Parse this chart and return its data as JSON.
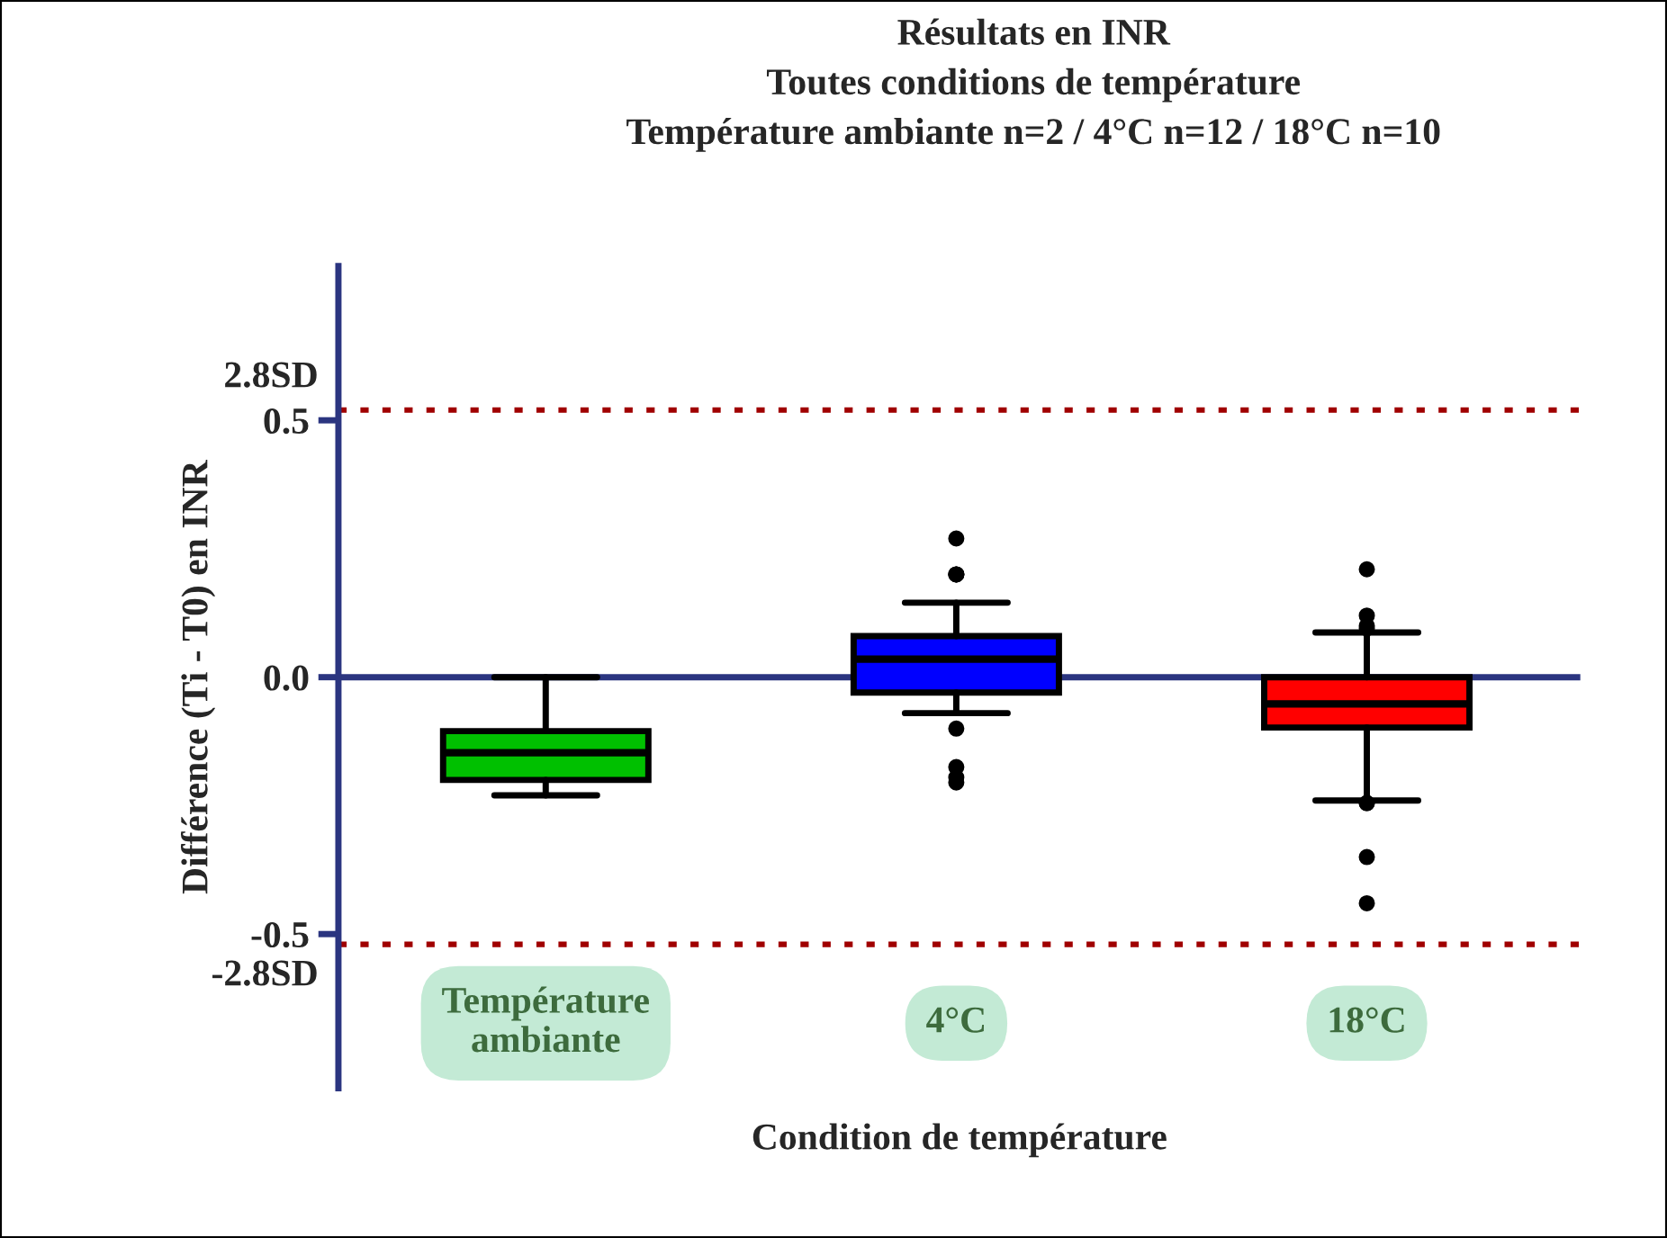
{
  "chart_data": {
    "type": "box",
    "title": "Résultats en INR\nToutes conditions de température\nTempérature ambiante n=2 / 4°C n=12 / 18°C n=10",
    "xlabel": "Condition de température",
    "ylabel": "Différence (Ti - T0) en INR",
    "categories": [
      "Température\nambiante",
      "4°C",
      "18°C"
    ],
    "colors": [
      "#00c000",
      "#0000ff",
      "#ff0000"
    ],
    "boxes": [
      {
        "low": -0.23,
        "q1": -0.2,
        "median": -0.147,
        "q3": -0.105,
        "high": 0.0
      },
      {
        "low": -0.07,
        "q1": -0.03,
        "median": 0.035,
        "q3": 0.08,
        "high": 0.145,
        "outliers": [
          0.27,
          0.2,
          0.2,
          0.2,
          -0.1,
          -0.175,
          -0.205,
          -0.195
        ]
      },
      {
        "low": -0.24,
        "q1": -0.098,
        "median": -0.052,
        "q3": 0.0,
        "high": 0.087,
        "outliers": [
          0.21,
          0.12,
          0.1,
          0.095,
          -0.245,
          -0.245,
          -0.35,
          -0.44
        ]
      }
    ],
    "ylim": [
      -0.8,
      0.8
    ],
    "yticks": [
      {
        "value": -0.5,
        "label": "-0.5"
      },
      {
        "value": 0,
        "label": "0.0"
      },
      {
        "value": 0.5,
        "label": "0.5"
      }
    ],
    "ref_lines": [
      {
        "axis": "y",
        "value": 0,
        "color": "#2b3580",
        "line_style": "solid"
      },
      {
        "axis": "y",
        "value": 0.52,
        "label": "2.8SD",
        "color": "#a00000",
        "line_style": "dotted"
      },
      {
        "axis": "y",
        "value": -0.52,
        "label": "-2.8SD",
        "color": "#a00000",
        "line_style": "dotted"
      }
    ],
    "grid": false,
    "legend": false
  }
}
